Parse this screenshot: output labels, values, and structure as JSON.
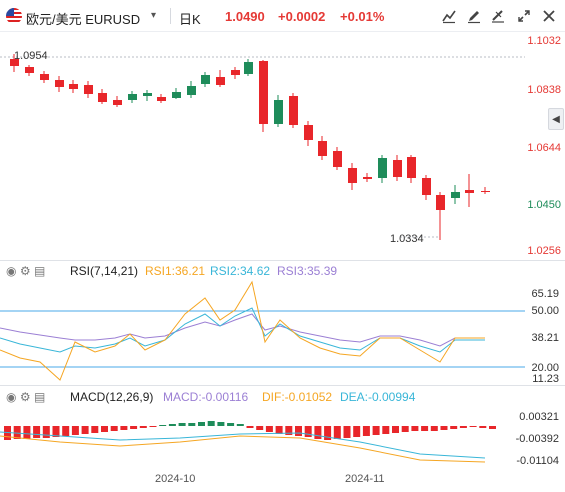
{
  "header": {
    "symbol": "欧元/美元  EURUSD",
    "timeframe": "日K",
    "price": "1.0490",
    "change": "+0.0002",
    "change_pct": "+0.01%"
  },
  "price_axis": [
    "1.1032",
    "1.0838",
    "1.0644",
    "1.0450",
    "1.0256"
  ],
  "price_annotations": {
    "high": "1.0954",
    "low": "1.0334"
  },
  "rsi": {
    "title": "RSI(7,14,21)",
    "rsi1": "RSI1:36.21",
    "rsi2": "RSI2:34.62",
    "rsi3": "RSI3:35.39",
    "axis": [
      "65.19",
      "50.00",
      "38.21",
      "20.00",
      "11.23"
    ]
  },
  "macd": {
    "title": "MACD(12,26,9)",
    "macd": "MACD:-0.00116",
    "dif": "DIF:-0.01052",
    "dea": "DEA:-0.00994",
    "axis": [
      "0.00321",
      "-0.00392",
      "-0.01104"
    ]
  },
  "time_axis": [
    "2024-10",
    "2024-11"
  ],
  "colors": {
    "up": "#1e8c5a",
    "down": "#e8262a",
    "rsi1": "#f5a623",
    "rsi2": "#39b6d8",
    "rsi3": "#9b7fd4",
    "dif": "#f5a623",
    "dea": "#39b6d8",
    "axis_text": "#e53935",
    "blue_line": "#4aa8e8"
  },
  "icons": [
    "flag-us-icon",
    "caret-down-icon",
    "indicator-settings-icon",
    "pen-icon",
    "ruler-icon",
    "fullscreen-icon",
    "grid-icon",
    "collapse-arrow-icon"
  ]
}
